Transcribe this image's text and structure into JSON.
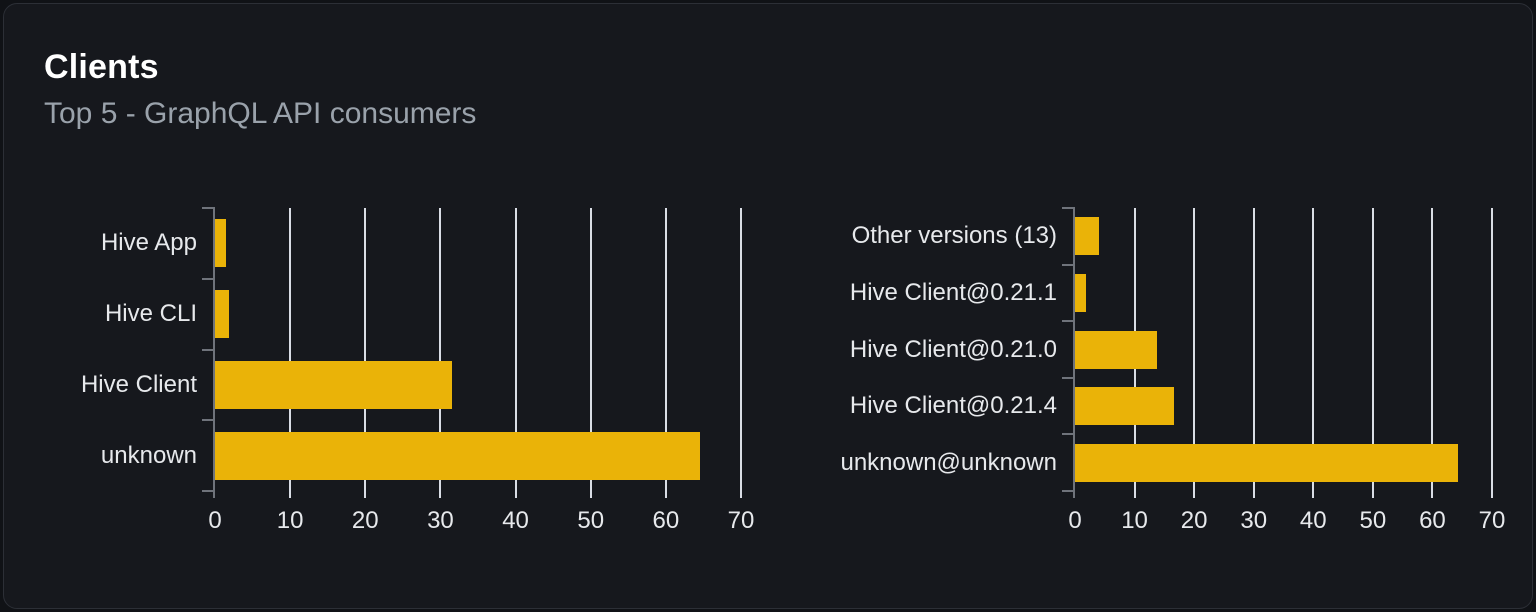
{
  "card": {
    "title": "Clients",
    "subtitle": "Top 5 - GraphQL API consumers"
  },
  "colors": {
    "page_bg": "#101216",
    "card_bg": "#16181d",
    "card_border": "#2c2f36",
    "title": "#ffffff",
    "subtitle": "#9aa2ab",
    "label": "#e7e9ec",
    "grid": "#d9dde5",
    "axis": "#6f737b",
    "bar": "#eab308"
  },
  "chart_data": [
    {
      "type": "bar",
      "orientation": "horizontal",
      "name": "clients-by-name",
      "categories": [
        "Hive App",
        "Hive CLI",
        "Hive Client",
        "unknown"
      ],
      "values": [
        1.4,
        1.9,
        31.5,
        64.5
      ],
      "xlim": [
        0,
        70
      ],
      "xticks": [
        0,
        10,
        20,
        30,
        40,
        50,
        60,
        70
      ],
      "grid": true,
      "legend": false,
      "bar_color": "#eab308"
    },
    {
      "type": "bar",
      "orientation": "horizontal",
      "name": "clients-by-version",
      "categories": [
        "Other versions (13)",
        "Hive Client@0.21.1",
        "Hive Client@0.21.0",
        "Hive Client@0.21.4",
        "unknown@unknown"
      ],
      "values": [
        4.0,
        1.9,
        13.8,
        16.6,
        64.3
      ],
      "xlim": [
        0,
        70
      ],
      "xticks": [
        0,
        10,
        20,
        30,
        40,
        50,
        60,
        70
      ],
      "grid": true,
      "legend": false,
      "bar_color": "#eab308"
    }
  ]
}
